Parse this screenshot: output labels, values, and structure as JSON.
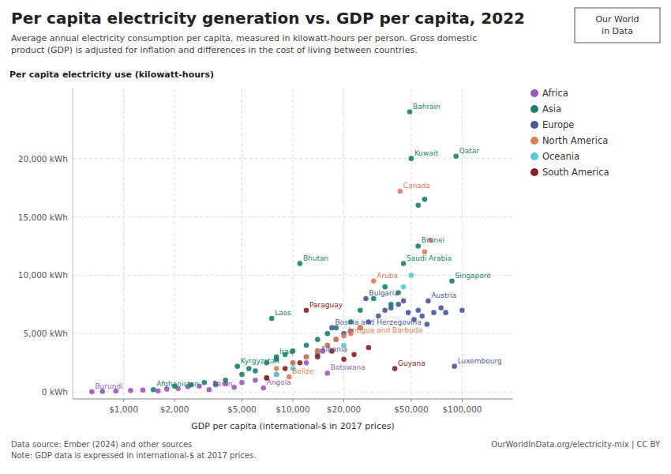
{
  "chart_data": {
    "type": "scatter",
    "title": "Per capita electricity generation vs. GDP per capita, 2022",
    "subtitle": "Average annual electricity consumption per capita, measured in kilowatt-hours per person. Gross domestic\nproduct (GDP) is adjusted for inflation and differences in the cost of living between countries.",
    "ylabel": "Per capita electricity use (kilowatt-hours)",
    "xlabel": "GDP per capita (international-$ in 2017 prices)",
    "footnote": "Data source: Ember (2024) and other sources\nNote: GDP data is expressed in international-$ at 2017 prices.",
    "credit": "OurWorldInData.org/electricity-mix | CC BY",
    "logo": "Our World\nin Data",
    "log": "x",
    "grid": true,
    "legend": "right",
    "xlim": [
      500,
      200000
    ],
    "ylim": [
      -600,
      26000
    ],
    "xticks": [
      {
        "value": 1000,
        "label": "$1,000"
      },
      {
        "value": 2000,
        "label": "$2,000"
      },
      {
        "value": 5000,
        "label": "$5,000"
      },
      {
        "value": 10000,
        "label": "$10,000"
      },
      {
        "value": 20000,
        "label": "$20,000"
      },
      {
        "value": 50000,
        "label": "$50,000"
      },
      {
        "value": 100000,
        "label": "$100,000"
      }
    ],
    "yticks": [
      {
        "value": 0,
        "label": "0 kWh"
      },
      {
        "value": 5000,
        "label": "5,000 kWh"
      },
      {
        "value": 10000,
        "label": "10,000 kWh"
      },
      {
        "value": 15000,
        "label": "15,000 kWh"
      },
      {
        "value": 20000,
        "label": "20,000 kWh"
      }
    ],
    "series": [
      {
        "name": "Africa",
        "color": "#9B59B6",
        "x": [
          650,
          3200,
          6700,
          16000,
          750,
          900,
          1100,
          1300,
          1600,
          1800,
          2100,
          2400,
          2800,
          3500,
          4000,
          4500,
          5000,
          6000,
          7000,
          8000,
          12000,
          15000
        ],
        "values": [
          30,
          200,
          350,
          1600,
          50,
          80,
          120,
          160,
          90,
          250,
          300,
          450,
          500,
          600,
          700,
          400,
          800,
          1000,
          1200,
          1500,
          2500,
          3500
        ],
        "labels": [
          "Burundi",
          "Benin",
          "Angola",
          "Botswana",
          null,
          null,
          null,
          null,
          null,
          null,
          null,
          null,
          null,
          null,
          null,
          null,
          null,
          null,
          null,
          null,
          null,
          null
        ]
      },
      {
        "name": "Asia",
        "color": "#1A7F6E",
        "x": [
          1500,
          4700,
          8000,
          7500,
          45000,
          55000,
          50000,
          49000,
          92000,
          87000,
          11000,
          2000,
          2500,
          3000,
          3500,
          4000,
          5000,
          5500,
          6000,
          7000,
          8000,
          9000,
          10000,
          12000,
          14000,
          16000,
          18000,
          22000,
          25000,
          30000,
          35000,
          38000,
          42000,
          55000,
          60000
        ],
        "values": [
          200,
          2200,
          3000,
          6300,
          11000,
          12500,
          20000,
          24000,
          20200,
          9500,
          11000,
          500,
          600,
          800,
          700,
          1000,
          1500,
          2000,
          1800,
          2500,
          2800,
          3200,
          3500,
          4000,
          4500,
          5000,
          5500,
          6000,
          7000,
          8000,
          9000,
          7500,
          8500,
          16000,
          16500
        ],
        "labels": [
          "Afghanistan",
          "Kyrgyzstan",
          "Iraq",
          "Laos",
          "Saudi Arabia",
          "Brunei",
          "Kuwait",
          "Bahrain",
          "Qatar",
          "Singapore",
          "Bhutan",
          null,
          null,
          null,
          null,
          null,
          null,
          null,
          null,
          null,
          null,
          null,
          null,
          null,
          null,
          null,
          null,
          null,
          null,
          null,
          null,
          null,
          null,
          null,
          null
        ]
      },
      {
        "name": "Europe",
        "color": "#4A5899",
        "x": [
          14000,
          17000,
          27000,
          63000,
          90000,
          10000,
          12000,
          14000,
          16000,
          18000,
          20000,
          22000,
          25000,
          28000,
          32000,
          35000,
          38000,
          42000,
          45000,
          48000,
          52000,
          55000,
          58000,
          62000,
          68000,
          75000,
          80000,
          100000
        ],
        "values": [
          3200,
          5500,
          8000,
          7800,
          2200,
          2500,
          3000,
          3500,
          4000,
          4500,
          5000,
          5200,
          5500,
          6000,
          6500,
          7000,
          7200,
          7500,
          7800,
          6800,
          6200,
          7000,
          6500,
          5800,
          6800,
          7200,
          6800,
          7000
        ],
        "labels": [
          "Albania",
          "Bosnia and Herzegovina",
          "Bulgaria",
          "Austria",
          "Luxembourg",
          null,
          null,
          null,
          null,
          null,
          null,
          null,
          null,
          null,
          null,
          null,
          null,
          null,
          null,
          null,
          null,
          null,
          null,
          null,
          null,
          null,
          null,
          null
        ]
      },
      {
        "name": "North America",
        "color": "#E07B54",
        "x": [
          9500,
          20000,
          30000,
          43000,
          8000,
          10000,
          12000,
          14000,
          16000,
          18000,
          22000,
          25000,
          60000,
          65000
        ],
        "values": [
          1300,
          4800,
          9500,
          17200,
          2000,
          2500,
          3000,
          3500,
          4000,
          4500,
          5000,
          5500,
          12000,
          13000
        ],
        "labels": [
          "Belize",
          "Antigua and Barbuda",
          "Aruba",
          "Canada",
          null,
          null,
          null,
          null,
          null,
          null,
          null,
          null,
          null,
          null
        ]
      },
      {
        "name": "Oceania",
        "color": "#5BC8D4",
        "x": [
          8000,
          10000,
          20000,
          45000,
          50000
        ],
        "values": [
          1500,
          2000,
          4000,
          9000,
          10000
        ]
      },
      {
        "name": "South America",
        "color": "#8B2020",
        "x": [
          12000,
          40000,
          7000,
          9000,
          11000,
          14000,
          17000,
          20000,
          23000,
          28000
        ],
        "values": [
          7000,
          2000,
          1200,
          2000,
          2500,
          3000,
          3500,
          2800,
          3200,
          3800
        ],
        "labels": [
          "Paraguay",
          "Guyana",
          null,
          null,
          null,
          null,
          null,
          null,
          null,
          null
        ]
      }
    ]
  }
}
